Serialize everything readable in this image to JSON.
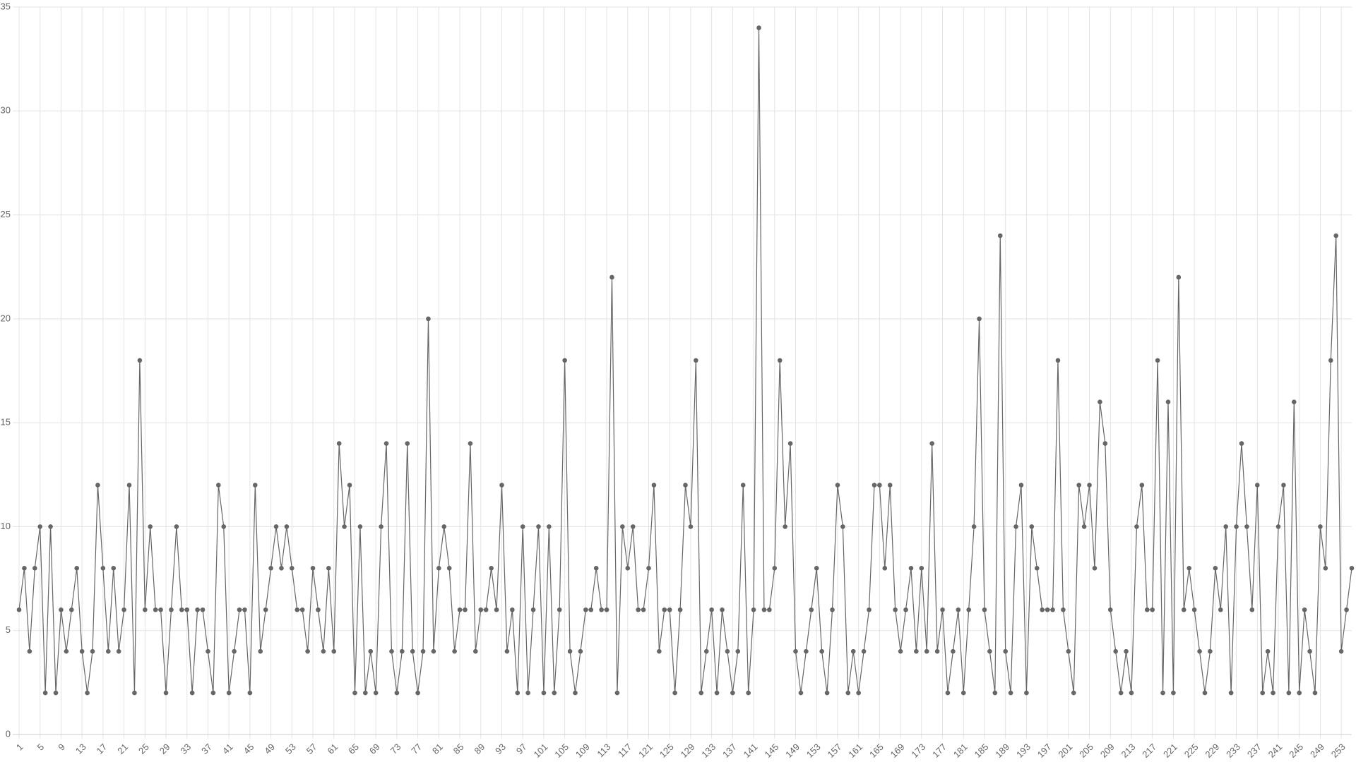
{
  "chart_data": {
    "type": "line",
    "color": "#666666",
    "grid": true,
    "x": [
      1,
      2,
      3,
      4,
      5,
      6,
      7,
      8,
      9,
      10,
      11,
      12,
      13,
      14,
      15,
      16,
      17,
      18,
      19,
      20,
      21,
      22,
      23,
      24,
      25,
      26,
      27,
      28,
      29,
      30,
      31,
      32,
      33,
      34,
      35,
      36,
      37,
      38,
      39,
      40,
      41,
      42,
      43,
      44,
      45,
      46,
      47,
      48,
      49,
      50,
      51,
      52,
      53,
      54,
      55,
      56,
      57,
      58,
      59,
      60,
      61,
      62,
      63,
      64,
      65,
      66,
      67,
      68,
      69,
      70,
      71,
      72,
      73,
      74,
      75,
      76,
      77,
      78,
      79,
      80,
      81,
      82,
      83,
      84,
      85,
      86,
      87,
      88,
      89,
      90,
      91,
      92,
      93,
      94,
      95,
      96,
      97,
      98,
      99,
      100,
      101,
      102,
      103,
      104,
      105,
      106,
      107,
      108,
      109,
      110,
      111,
      112,
      113,
      114,
      115,
      116,
      117,
      118,
      119,
      120,
      121,
      122,
      123,
      124,
      125,
      126,
      127,
      128,
      129,
      130,
      131,
      132,
      133,
      134,
      135,
      136,
      137,
      138,
      139,
      140,
      141,
      142,
      143,
      144,
      145,
      146,
      147,
      148,
      149,
      150,
      151,
      152,
      153,
      154,
      155,
      156,
      157,
      158,
      159,
      160,
      161,
      162,
      163,
      164,
      165,
      166,
      167,
      168,
      169,
      170,
      171,
      172,
      173,
      174,
      175,
      176,
      177,
      178,
      179,
      180,
      181,
      182,
      183,
      184,
      185,
      186,
      187,
      188,
      189,
      190,
      191,
      192,
      193,
      194,
      195,
      196,
      197,
      198,
      199,
      200,
      201,
      202,
      203,
      204,
      205,
      206,
      207,
      208,
      209,
      210,
      211,
      212,
      213,
      214,
      215,
      216,
      217,
      218,
      219,
      220,
      221,
      222,
      223,
      224,
      225,
      226,
      227,
      228,
      229,
      230,
      231,
      232,
      233,
      234,
      235,
      236,
      237,
      238,
      239,
      240,
      241,
      242,
      243,
      244,
      245,
      246,
      247,
      248,
      249,
      250,
      251,
      252,
      253,
      254,
      255
    ],
    "values": [
      6,
      8,
      4,
      8,
      10,
      2,
      10,
      2,
      6,
      4,
      6,
      8,
      4,
      2,
      4,
      12,
      8,
      4,
      8,
      4,
      6,
      12,
      2,
      18,
      6,
      10,
      6,
      6,
      2,
      6,
      10,
      6,
      6,
      2,
      6,
      6,
      4,
      2,
      12,
      10,
      2,
      4,
      6,
      6,
      2,
      12,
      4,
      6,
      8,
      10,
      8,
      10,
      8,
      6,
      6,
      4,
      8,
      6,
      4,
      8,
      4,
      14,
      10,
      12,
      2,
      10,
      2,
      4,
      2,
      10,
      14,
      4,
      2,
      4,
      14,
      4,
      2,
      4,
      20,
      4,
      8,
      10,
      8,
      4,
      6,
      6,
      14,
      4,
      6,
      6,
      8,
      6,
      12,
      4,
      6,
      2,
      10,
      2,
      6,
      10,
      2,
      10,
      2,
      6,
      18,
      4,
      2,
      4,
      6,
      6,
      8,
      6,
      6,
      22,
      2,
      10,
      8,
      10,
      6,
      6,
      8,
      12,
      4,
      6,
      6,
      2,
      6,
      12,
      10,
      18,
      2,
      4,
      6,
      2,
      6,
      4,
      2,
      4,
      12,
      2,
      6,
      34,
      6,
      6,
      8,
      18,
      10,
      14,
      4,
      2,
      4,
      6,
      8,
      4,
      2,
      6,
      12,
      10,
      2,
      4,
      2,
      4,
      6,
      12,
      12,
      8,
      12,
      6,
      4,
      6,
      8,
      4,
      8,
      4,
      14,
      4,
      6,
      2,
      4,
      6,
      2,
      6,
      10,
      20,
      6,
      4,
      2,
      24,
      4,
      2,
      10,
      12,
      2,
      10,
      8,
      6,
      6,
      6,
      18,
      6,
      4,
      2,
      12,
      10,
      12,
      8,
      16,
      14,
      6,
      4,
      2,
      4,
      2,
      10,
      12,
      6,
      6,
      18,
      2,
      16,
      2,
      22,
      6,
      8,
      6,
      4,
      2,
      4,
      8,
      6,
      10,
      2,
      10,
      14,
      10,
      6,
      12,
      2,
      4,
      2,
      10,
      12,
      2,
      16,
      2,
      6,
      4,
      2,
      10,
      8,
      18,
      24,
      4,
      6,
      8
    ],
    "xlim": [
      1,
      255
    ],
    "xticks": [
      1,
      5,
      9,
      13,
      17,
      21,
      25,
      29,
      33,
      37,
      41,
      45,
      49,
      53,
      57,
      61,
      65,
      69,
      73,
      77,
      81,
      85,
      89,
      93,
      97,
      101,
      105,
      109,
      113,
      117,
      121,
      125,
      129,
      133,
      137,
      141,
      145,
      149,
      153,
      157,
      161,
      165,
      169,
      173,
      177,
      181,
      185,
      189,
      193,
      197,
      201,
      205,
      209,
      213,
      217,
      221,
      225,
      229,
      233,
      237,
      241,
      245,
      249,
      253
    ],
    "ylim": [
      0,
      35
    ],
    "yticks": [
      0,
      5,
      10,
      15,
      20,
      25,
      30,
      35
    ]
  }
}
